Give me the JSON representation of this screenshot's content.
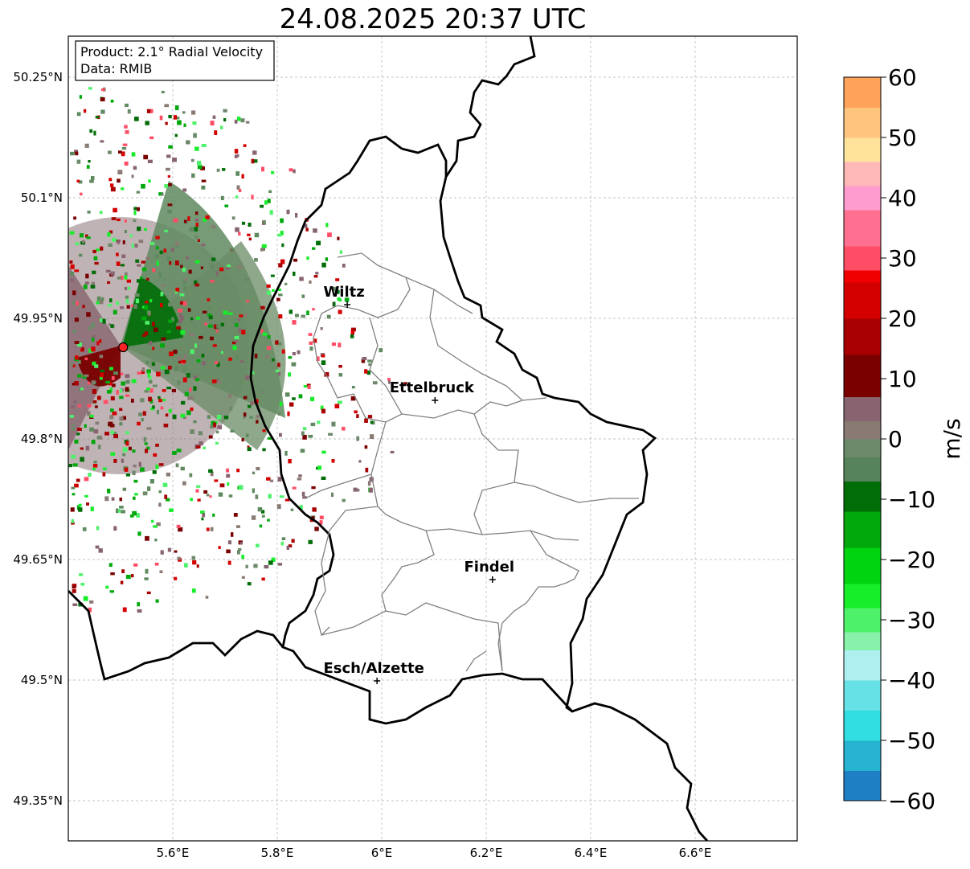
{
  "title": "24.08.2025 20:37 UTC",
  "info_box": {
    "product": "Product: 2.1° Radial Velocity",
    "data": "Data: RMIB"
  },
  "map": {
    "lon_range": [
      5.4,
      6.8
    ],
    "lat_range": [
      49.3,
      50.3
    ],
    "lon_ticks": [
      {
        "value": 5.6,
        "label": "5.6°E"
      },
      {
        "value": 5.8,
        "label": "5.8°E"
      },
      {
        "value": 6.0,
        "label": "6°E"
      },
      {
        "value": 6.2,
        "label": "6.2°E"
      },
      {
        "value": 6.4,
        "label": "6.4°E"
      },
      {
        "value": 6.6,
        "label": "6.6°E"
      }
    ],
    "lat_ticks": [
      {
        "value": 50.25,
        "label": "50.25°N"
      },
      {
        "value": 50.1,
        "label": "50.1°N"
      },
      {
        "value": 49.95,
        "label": "49.95°N"
      },
      {
        "value": 49.8,
        "label": "49.8°N"
      },
      {
        "value": 49.65,
        "label": "49.65°N"
      },
      {
        "value": 49.5,
        "label": "49.5°N"
      },
      {
        "value": 49.35,
        "label": "49.35°N"
      }
    ],
    "radar_site": {
      "lon": 5.505,
      "lat": 49.914
    },
    "cities": [
      {
        "name": "Wiltz",
        "lon": 5.934,
        "lat": 49.967
      },
      {
        "name": "Ettelbruck",
        "lon": 6.102,
        "lat": 49.848
      },
      {
        "name": "Findel",
        "lon": 6.212,
        "lat": 49.625
      },
      {
        "name": "Esch/Alzette",
        "lon": 5.991,
        "lat": 49.499
      }
    ]
  },
  "colorbar": {
    "label": "m/s",
    "min": -60,
    "max": 60,
    "ticks": [
      {
        "value": 60,
        "label": "60"
      },
      {
        "value": 50,
        "label": "50"
      },
      {
        "value": 40,
        "label": "40"
      },
      {
        "value": 30,
        "label": "30"
      },
      {
        "value": 20,
        "label": "20"
      },
      {
        "value": 10,
        "label": "10"
      },
      {
        "value": 0,
        "label": "0"
      },
      {
        "value": -10,
        "label": "−10"
      },
      {
        "value": -20,
        "label": "−20"
      },
      {
        "value": -30,
        "label": "−30"
      },
      {
        "value": -40,
        "label": "−40"
      },
      {
        "value": -50,
        "label": "−50"
      },
      {
        "value": -60,
        "label": "−60"
      }
    ],
    "bands": [
      {
        "from": -60,
        "to": -55,
        "color": "#1f7fc4"
      },
      {
        "from": -55,
        "to": -50,
        "color": "#26b2d1"
      },
      {
        "from": -50,
        "to": -45,
        "color": "#30dde0"
      },
      {
        "from": -45,
        "to": -40,
        "color": "#66e2e6"
      },
      {
        "from": -40,
        "to": -35,
        "color": "#aeeff0"
      },
      {
        "from": -35,
        "to": -32,
        "color": "#88f2aa"
      },
      {
        "from": -32,
        "to": -28,
        "color": "#4ef26a"
      },
      {
        "from": -28,
        "to": -24,
        "color": "#17ee2a"
      },
      {
        "from": -24,
        "to": -18,
        "color": "#00d40f"
      },
      {
        "from": -18,
        "to": -12,
        "color": "#00a80c"
      },
      {
        "from": -12,
        "to": -7,
        "color": "#006d07"
      },
      {
        "from": -7,
        "to": -3,
        "color": "#57835a"
      },
      {
        "from": -3,
        "to": 0,
        "color": "#6c8a6a"
      },
      {
        "from": 0,
        "to": 3,
        "color": "#8a7a74"
      },
      {
        "from": 3,
        "to": 7,
        "color": "#876470"
      },
      {
        "from": 7,
        "to": 14,
        "color": "#7a0000"
      },
      {
        "from": 14,
        "to": 20,
        "color": "#a80000"
      },
      {
        "from": 20,
        "to": 26,
        "color": "#d40000"
      },
      {
        "from": 26,
        "to": 28,
        "color": "#f00000"
      },
      {
        "from": 28,
        "to": 32,
        "color": "#ff4d66"
      },
      {
        "from": 32,
        "to": 38,
        "color": "#ff7090"
      },
      {
        "from": 38,
        "to": 42,
        "color": "#ff9ccf"
      },
      {
        "from": 42,
        "to": 46,
        "color": "#ffb8b8"
      },
      {
        "from": 46,
        "to": 50,
        "color": "#ffe39b"
      },
      {
        "from": 50,
        "to": 55,
        "color": "#ffc57f"
      },
      {
        "from": 55,
        "to": 60,
        "color": "#ffa25a"
      }
    ]
  },
  "colors": {
    "inbound_green": "#5f8a5f",
    "outbound_red": "#8a0000",
    "border": "#000000",
    "canton": "#808080",
    "grid": "#b0b0b0",
    "radar_marker": "#ff2222"
  }
}
